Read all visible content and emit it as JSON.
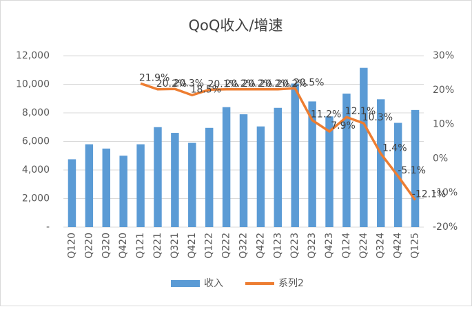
{
  "chart_data": {
    "type": "bar_line",
    "title": "QoQ收入/增速",
    "categories": [
      "Q120",
      "Q220",
      "Q320",
      "Q420",
      "Q121",
      "Q221",
      "Q321",
      "Q421",
      "Q122",
      "Q222",
      "Q322",
      "Q422",
      "Q123",
      "Q223",
      "Q323",
      "Q423",
      "Q124",
      "Q224",
      "Q324",
      "Q424",
      "Q125"
    ],
    "series": [
      {
        "name": "收入",
        "type": "bar",
        "color": "#5b9bd5",
        "axis": "y",
        "values": [
          4750,
          5800,
          5500,
          5000,
          5800,
          7000,
          6600,
          5900,
          6950,
          8400,
          7900,
          7050,
          8350,
          10050,
          8800,
          7750,
          9350,
          11150,
          8950,
          7300,
          8200
        ]
      },
      {
        "name": "系列2",
        "type": "line",
        "color": "#ed7d31",
        "axis": "y2",
        "values": [
          null,
          null,
          null,
          null,
          21.9,
          20.2,
          20.3,
          18.5,
          20.1,
          20.2,
          20.2,
          20.2,
          20.2,
          20.5,
          11.2,
          7.9,
          12.1,
          10.3,
          1.4,
          -5.1,
          -12.1
        ],
        "value_labels": [
          null,
          null,
          null,
          null,
          "21.9%",
          "20.2%",
          "20.3%",
          "18.5%",
          "20.1%",
          "20.2%",
          "20.2%",
          "20.2%",
          "20.2%",
          "20.5%",
          "11.2%",
          "7.9%",
          "12.1%",
          "10.3%",
          "1.4%",
          "-5.1%",
          "-12.1%"
        ]
      }
    ],
    "ylim": [
      0,
      12000
    ],
    "yticks": [
      {
        "value": 0,
        "label": "-"
      },
      {
        "value": 2000,
        "label": "2,000"
      },
      {
        "value": 4000,
        "label": "4,000"
      },
      {
        "value": 6000,
        "label": "6,000"
      },
      {
        "value": 8000,
        "label": "8,000"
      },
      {
        "value": 10000,
        "label": "10,000"
      },
      {
        "value": 12000,
        "label": "12,000"
      }
    ],
    "y2lim": [
      -20,
      30
    ],
    "y2ticks": [
      {
        "value": -20,
        "label": "-20%"
      },
      {
        "value": -10,
        "label": "-10%"
      },
      {
        "value": 0,
        "label": "0%"
      },
      {
        "value": 10,
        "label": "10%"
      },
      {
        "value": 20,
        "label": "20%"
      },
      {
        "value": 30,
        "label": "30%"
      }
    ],
    "grid": true,
    "legend": "bottom"
  }
}
